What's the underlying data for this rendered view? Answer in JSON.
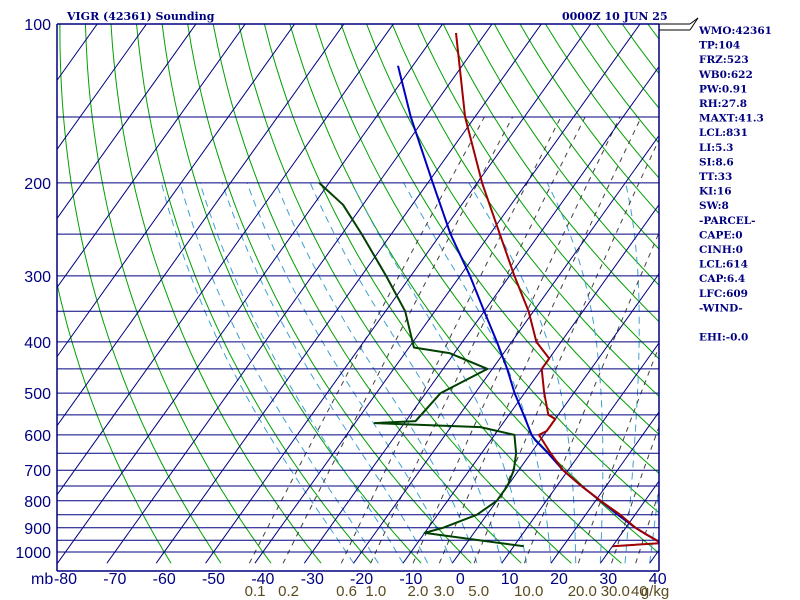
{
  "header": {
    "title": "VIGR (42361) Sounding",
    "time": "0000Z 10 JUN 25"
  },
  "indices": [
    "WMO:42361",
    "TP:104",
    "FRZ:523",
    "WB0:622",
    "PW:0.91",
    "RH:27.8",
    "MAXT:41.3",
    "LCL:831",
    "LI:5.3",
    "SI:8.6",
    "TT:33",
    "KI:16",
    "SW:8",
    "-PARCEL-",
    "CAPE:0",
    "CINH:0",
    "LCL:614",
    "CAP:6.4",
    "LFC:609",
    "-WIND-",
    "",
    "EHI:-0.0"
  ],
  "colors": {
    "grid": "#000080",
    "isotherm": "#000080",
    "dry_adiabat": "#00a000",
    "moist_adiabat": "#40a0d0",
    "mixing_ratio": "#404040",
    "temperature": "#a00000",
    "dewpoint": "#004000",
    "parcel": "#0000c0"
  },
  "chart_data": {
    "type": "skew-t",
    "y_axis": {
      "unit_label": "mb",
      "scale": "log-pressure",
      "range": [
        1000,
        100
      ],
      "pressure_lines": [
        1000,
        950,
        900,
        850,
        800,
        750,
        700,
        650,
        600,
        550,
        500,
        450,
        400,
        350,
        300,
        250,
        200,
        150,
        100
      ],
      "tick_labels": [
        "100",
        "200",
        "300",
        "400",
        "500",
        "600",
        "700",
        "800",
        "900",
        "1000"
      ]
    },
    "x_axis": {
      "unit": "°C",
      "range": [
        -80,
        40
      ],
      "tick_labels": [
        "-80",
        "-70",
        "-60",
        "-50",
        "-40",
        "-30",
        "-20",
        "-10",
        "0",
        "10",
        "20",
        "30",
        "40"
      ]
    },
    "mixing_ratio_labels": [
      "0.1",
      "0.2",
      "0.6",
      "1.0",
      "2.0",
      "3.0",
      "5.0",
      "10.0",
      "20.0",
      "30.0",
      "40",
      "g/kg"
    ],
    "series": [
      {
        "key": "temperature",
        "points": [
          [
            975,
            30
          ],
          [
            962,
            39.5
          ],
          [
            950,
            38
          ],
          [
            925,
            35
          ],
          [
            900,
            32
          ],
          [
            850,
            27
          ],
          [
            800,
            21
          ],
          [
            750,
            15
          ],
          [
            700,
            9
          ],
          [
            650,
            4
          ],
          [
            600,
            -1
          ],
          [
            590,
            0
          ],
          [
            560,
            0
          ],
          [
            550,
            -2
          ],
          [
            500,
            -6
          ],
          [
            450,
            -10
          ],
          [
            430,
            -10
          ],
          [
            400,
            -15
          ],
          [
            350,
            -21
          ],
          [
            300,
            -29
          ],
          [
            250,
            -38
          ],
          [
            200,
            -49
          ],
          [
            150,
            -62
          ],
          [
            104,
            -76
          ]
        ]
      },
      {
        "key": "dewpoint",
        "points": [
          [
            975,
            12
          ],
          [
            920,
            -10
          ],
          [
            900,
            -7
          ],
          [
            850,
            -2
          ],
          [
            800,
            0
          ],
          [
            750,
            0
          ],
          [
            700,
            -1
          ],
          [
            650,
            -3
          ],
          [
            600,
            -6
          ],
          [
            580,
            -14
          ],
          [
            570,
            -36
          ],
          [
            565,
            -28
          ],
          [
            500,
            -27
          ],
          [
            450,
            -21
          ],
          [
            420,
            -31
          ],
          [
            410,
            -39
          ],
          [
            350,
            -46
          ],
          [
            300,
            -55
          ],
          [
            250,
            -66
          ],
          [
            220,
            -74
          ],
          [
            200,
            -82
          ]
        ]
      },
      {
        "key": "parcel",
        "points": [
          [
            962,
            39.5
          ],
          [
            925,
            35
          ],
          [
            900,
            32
          ],
          [
            850,
            26.5
          ],
          [
            800,
            21
          ],
          [
            750,
            15
          ],
          [
            700,
            9
          ],
          [
            650,
            3.5
          ],
          [
            614,
            -1
          ],
          [
            600,
            -2.5
          ],
          [
            550,
            -7
          ],
          [
            500,
            -12
          ],
          [
            450,
            -17
          ],
          [
            400,
            -23
          ],
          [
            350,
            -30
          ],
          [
            300,
            -38
          ],
          [
            250,
            -48
          ],
          [
            200,
            -59
          ],
          [
            150,
            -73
          ],
          [
            120,
            -83
          ]
        ]
      }
    ]
  }
}
